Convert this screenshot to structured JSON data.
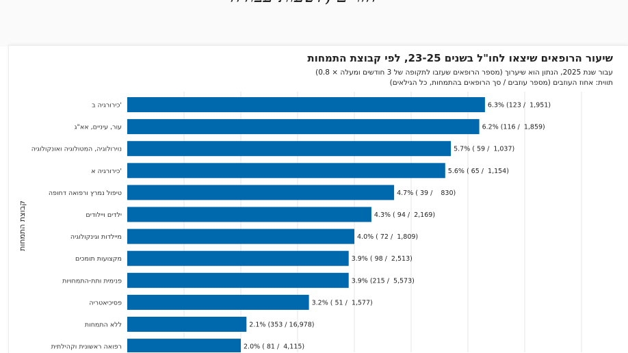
{
  "header_banner_text": "הזרים ,לשעות עבודה",
  "chart_data": {
    "type": "bar",
    "orientation": "horizontal",
    "title": "שיעור הרופאים שיצאו לחו\"ל בשנים 23-25, לפי קבוצת התמחות",
    "subtitle": "עבור שנת 2025, הנתון הוא שיערוך (מספר הרופאים שעזבו לתקופה של 3 חודשים ומעלה × 0.8)",
    "note": "תווית: אחוז העוזבים (מספר עוזבים / סך הרופאים בהתמחות, כל הגילאים)",
    "ylabel": "קבוצת התמחות",
    "xlabel": "",
    "grid": true,
    "bar_color": "#0068ad",
    "categories": [
      "כירורגיה ב'",
      "עור, עיניים, אא\"ג",
      "נוירולוגיה, המטולוגיה ואונקולוגיה",
      "כירורגיה א'",
      "טיפול נמרץ ורפואה דחופה",
      "ילדים ויילודים",
      "מיילדות וגינקולוגיה",
      "מקצועות תומכים",
      "פנימית ותת-התמחויות",
      "פסיכיאטריה",
      "ללא התמחות",
      "רפואה ראשונית וקהילתית"
    ],
    "values": [
      6.3,
      6.2,
      5.7,
      5.6,
      4.7,
      4.3,
      4.0,
      3.9,
      3.9,
      3.2,
      2.1,
      2.0
    ],
    "labels": [
      "6.3% (123 /  1,951)",
      "6.2% (116 /  1,859)",
      "5.7% ( 59 /  1,037)",
      "5.6% ( 65 /  1,154)",
      "4.7% ( 39 /    830)",
      "4.3% ( 94 /  2,169)",
      "4.0% ( 72 /  1,809)",
      "3.9% ( 98 /  2,513)",
      "3.9% (215 /  5,573)",
      "3.2% ( 51 /  1,577)",
      "2.1% (353 / 16,978)",
      "2.0% ( 81 /  4,115)"
    ]
  }
}
